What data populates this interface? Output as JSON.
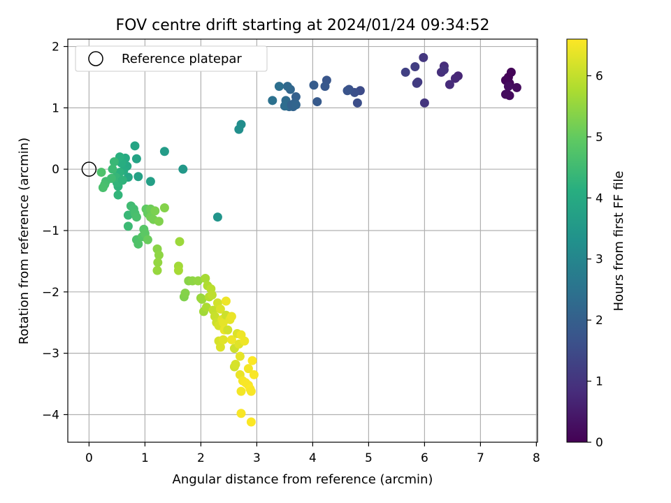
{
  "chart_data": {
    "type": "scatter",
    "title": "FOV centre drift starting at 2024/01/24 09:34:52",
    "xlabel": "Angular distance from reference (arcmin)",
    "ylabel": "Rotation from reference (arcmin)",
    "colorbar_label": "Hours from first FF file",
    "xlim": [
      -0.38,
      8.02
    ],
    "ylim": [
      -4.45,
      2.12
    ],
    "clim": [
      0,
      6.6
    ],
    "x_ticks": [
      0,
      1,
      2,
      3,
      4,
      5,
      6,
      7,
      8
    ],
    "y_ticks": [
      -4,
      -3,
      -2,
      -1,
      0,
      1,
      2
    ],
    "colorbar_ticks": [
      0,
      1,
      2,
      3,
      4,
      5,
      6
    ],
    "grid": true,
    "colormap": "viridis",
    "legend": {
      "placement": "top-left",
      "entries": [
        "Reference platepar"
      ]
    },
    "reference_point": {
      "x": 0,
      "y": 0,
      "label": "Reference platepar"
    },
    "points": [
      [
        7.5,
        1.5,
        0.05
      ],
      [
        7.55,
        1.58,
        0.08
      ],
      [
        7.45,
        1.45,
        0.1
      ],
      [
        7.52,
        1.4,
        0.12
      ],
      [
        7.48,
        1.22,
        0.15
      ],
      [
        7.52,
        1.2,
        0.18
      ],
      [
        7.65,
        1.33,
        0.2
      ],
      [
        7.45,
        1.22,
        0.22
      ],
      [
        7.5,
        1.35,
        0.25
      ],
      [
        6.6,
        1.52,
        0.7
      ],
      [
        6.55,
        1.48,
        0.75
      ],
      [
        6.45,
        1.38,
        0.8
      ],
      [
        6.35,
        1.68,
        0.85
      ],
      [
        6.3,
        1.58,
        0.9
      ],
      [
        6.35,
        1.62,
        0.95
      ],
      [
        6.0,
        1.08,
        1.0
      ],
      [
        5.98,
        1.82,
        1.05
      ],
      [
        5.88,
        1.42,
        1.1
      ],
      [
        5.86,
        1.4,
        1.15
      ],
      [
        5.83,
        1.67,
        1.2
      ],
      [
        5.66,
        1.58,
        1.25
      ],
      [
        4.85,
        1.28,
        1.5
      ],
      [
        4.8,
        1.08,
        1.55
      ],
      [
        4.75,
        1.25,
        1.6
      ],
      [
        4.65,
        1.3,
        1.65
      ],
      [
        4.62,
        1.28,
        1.7
      ],
      [
        4.25,
        1.45,
        1.75
      ],
      [
        4.22,
        1.35,
        1.8
      ],
      [
        4.08,
        1.1,
        1.85
      ],
      [
        4.02,
        1.37,
        1.9
      ],
      [
        3.7,
        1.18,
        2.0
      ],
      [
        3.68,
        1.08,
        2.05
      ],
      [
        3.65,
        1.02,
        2.1
      ],
      [
        3.6,
        1.3,
        2.15
      ],
      [
        3.58,
        1.02,
        2.2
      ],
      [
        3.55,
        1.35,
        2.25
      ],
      [
        3.52,
        1.12,
        2.3
      ],
      [
        3.5,
        1.03,
        2.35
      ],
      [
        3.4,
        1.35,
        2.4
      ],
      [
        3.28,
        1.12,
        2.45
      ],
      [
        3.62,
        1.05,
        2.1
      ],
      [
        3.7,
        1.05,
        2.15
      ],
      [
        2.72,
        0.73,
        3.2
      ],
      [
        2.68,
        0.65,
        3.25
      ],
      [
        2.3,
        -0.78,
        3.4
      ],
      [
        1.68,
        0.0,
        3.5
      ],
      [
        1.35,
        0.29,
        3.6
      ],
      [
        1.1,
        -0.2,
        3.7
      ],
      [
        0.88,
        -0.12,
        3.75
      ],
      [
        0.85,
        0.17,
        3.8
      ],
      [
        0.82,
        0.38,
        3.85
      ],
      [
        0.7,
        -0.13,
        3.9
      ],
      [
        0.68,
        0.05,
        3.95
      ],
      [
        0.65,
        0.18,
        4.0
      ],
      [
        0.62,
        -0.02,
        4.05
      ],
      [
        0.58,
        0.1,
        4.1
      ],
      [
        0.55,
        0.2,
        4.15
      ],
      [
        0.55,
        -0.05,
        4.2
      ],
      [
        0.52,
        -0.28,
        4.25
      ],
      [
        0.5,
        -0.22,
        4.3
      ],
      [
        0.48,
        -0.13,
        4.35
      ],
      [
        0.45,
        0.12,
        4.4
      ],
      [
        0.42,
        0.0,
        4.45
      ],
      [
        0.4,
        -0.15,
        4.5
      ],
      [
        0.3,
        -0.2,
        4.55
      ],
      [
        0.28,
        -0.25,
        4.6
      ],
      [
        0.25,
        -0.3,
        4.65
      ],
      [
        0.22,
        -0.05,
        4.7
      ],
      [
        0.52,
        -0.42,
        4.3
      ],
      [
        0.6,
        -0.18,
        4.25
      ],
      [
        0.7,
        -0.75,
        4.4
      ],
      [
        0.7,
        -0.93,
        4.45
      ],
      [
        0.75,
        -0.6,
        4.5
      ],
      [
        0.8,
        -0.65,
        4.55
      ],
      [
        0.82,
        -0.72,
        4.6
      ],
      [
        0.85,
        -0.78,
        4.65
      ],
      [
        0.85,
        -1.15,
        4.7
      ],
      [
        0.88,
        -1.22,
        4.75
      ],
      [
        0.95,
        -1.1,
        4.8
      ],
      [
        0.98,
        -0.98,
        4.85
      ],
      [
        1.0,
        -1.05,
        4.9
      ],
      [
        1.02,
        -0.65,
        4.95
      ],
      [
        1.05,
        -0.72,
        5.0
      ],
      [
        1.05,
        -1.15,
        5.05
      ],
      [
        1.1,
        -0.65,
        5.1
      ],
      [
        1.1,
        -0.78,
        5.15
      ],
      [
        1.15,
        -0.82,
        5.2
      ],
      [
        1.18,
        -0.68,
        5.25
      ],
      [
        1.25,
        -0.85,
        5.3
      ],
      [
        1.35,
        -0.63,
        5.35
      ],
      [
        1.22,
        -1.3,
        5.4
      ],
      [
        1.25,
        -1.4,
        5.45
      ],
      [
        1.23,
        -1.52,
        5.5
      ],
      [
        1.22,
        -1.65,
        5.55
      ],
      [
        1.62,
        -1.18,
        5.6
      ],
      [
        1.6,
        -1.58,
        5.65
      ],
      [
        1.6,
        -1.65,
        5.7
      ],
      [
        1.7,
        -2.08,
        5.3
      ],
      [
        1.72,
        -2.02,
        5.35
      ],
      [
        1.78,
        -1.82,
        5.4
      ],
      [
        1.85,
        -1.82,
        5.45
      ],
      [
        1.95,
        -1.82,
        5.5
      ],
      [
        2.0,
        -2.1,
        5.55
      ],
      [
        2.02,
        -2.12,
        5.6
      ],
      [
        2.05,
        -2.32,
        5.65
      ],
      [
        2.08,
        -1.78,
        5.7
      ],
      [
        2.1,
        -2.25,
        5.75
      ],
      [
        2.12,
        -1.9,
        5.8
      ],
      [
        2.15,
        -2.08,
        5.85
      ],
      [
        2.18,
        -1.95,
        5.9
      ],
      [
        2.2,
        -2.05,
        5.95
      ],
      [
        2.22,
        -2.3,
        6.0
      ],
      [
        2.25,
        -2.4,
        6.05
      ],
      [
        2.28,
        -2.5,
        6.1
      ],
      [
        2.3,
        -2.18,
        6.15
      ],
      [
        2.32,
        -2.55,
        6.2
      ],
      [
        2.35,
        -2.28,
        6.25
      ],
      [
        2.38,
        -2.45,
        6.3
      ],
      [
        2.4,
        -2.5,
        6.35
      ],
      [
        2.42,
        -2.62,
        6.4
      ],
      [
        2.45,
        -2.15,
        6.45
      ],
      [
        2.45,
        -2.38,
        6.1
      ],
      [
        2.48,
        -2.62,
        6.15
      ],
      [
        2.32,
        -2.8,
        6.2
      ],
      [
        2.35,
        -2.9,
        6.25
      ],
      [
        2.4,
        -2.78,
        6.3
      ],
      [
        2.52,
        -2.45,
        6.35
      ],
      [
        2.55,
        -2.4,
        6.4
      ],
      [
        2.55,
        -2.78,
        6.45
      ],
      [
        2.6,
        -2.92,
        6.1
      ],
      [
        2.6,
        -3.22,
        6.15
      ],
      [
        2.62,
        -3.18,
        6.2
      ],
      [
        2.65,
        -2.68,
        6.25
      ],
      [
        2.68,
        -2.85,
        6.3
      ],
      [
        2.7,
        -3.05,
        6.35
      ],
      [
        2.7,
        -3.35,
        6.4
      ],
      [
        2.72,
        -2.7,
        6.45
      ],
      [
        2.72,
        -3.62,
        6.5
      ],
      [
        2.75,
        -3.45,
        6.52
      ],
      [
        2.78,
        -2.8,
        6.45
      ],
      [
        2.8,
        -3.48,
        6.55
      ],
      [
        2.85,
        -3.25,
        6.5
      ],
      [
        2.85,
        -3.52,
        6.55
      ],
      [
        2.88,
        -3.58,
        6.58
      ],
      [
        2.9,
        -3.62,
        6.55
      ],
      [
        2.92,
        -3.12,
        6.58
      ],
      [
        2.95,
        -3.35,
        6.55
      ],
      [
        2.72,
        -3.98,
        6.55
      ],
      [
        2.9,
        -4.12,
        6.58
      ]
    ]
  }
}
